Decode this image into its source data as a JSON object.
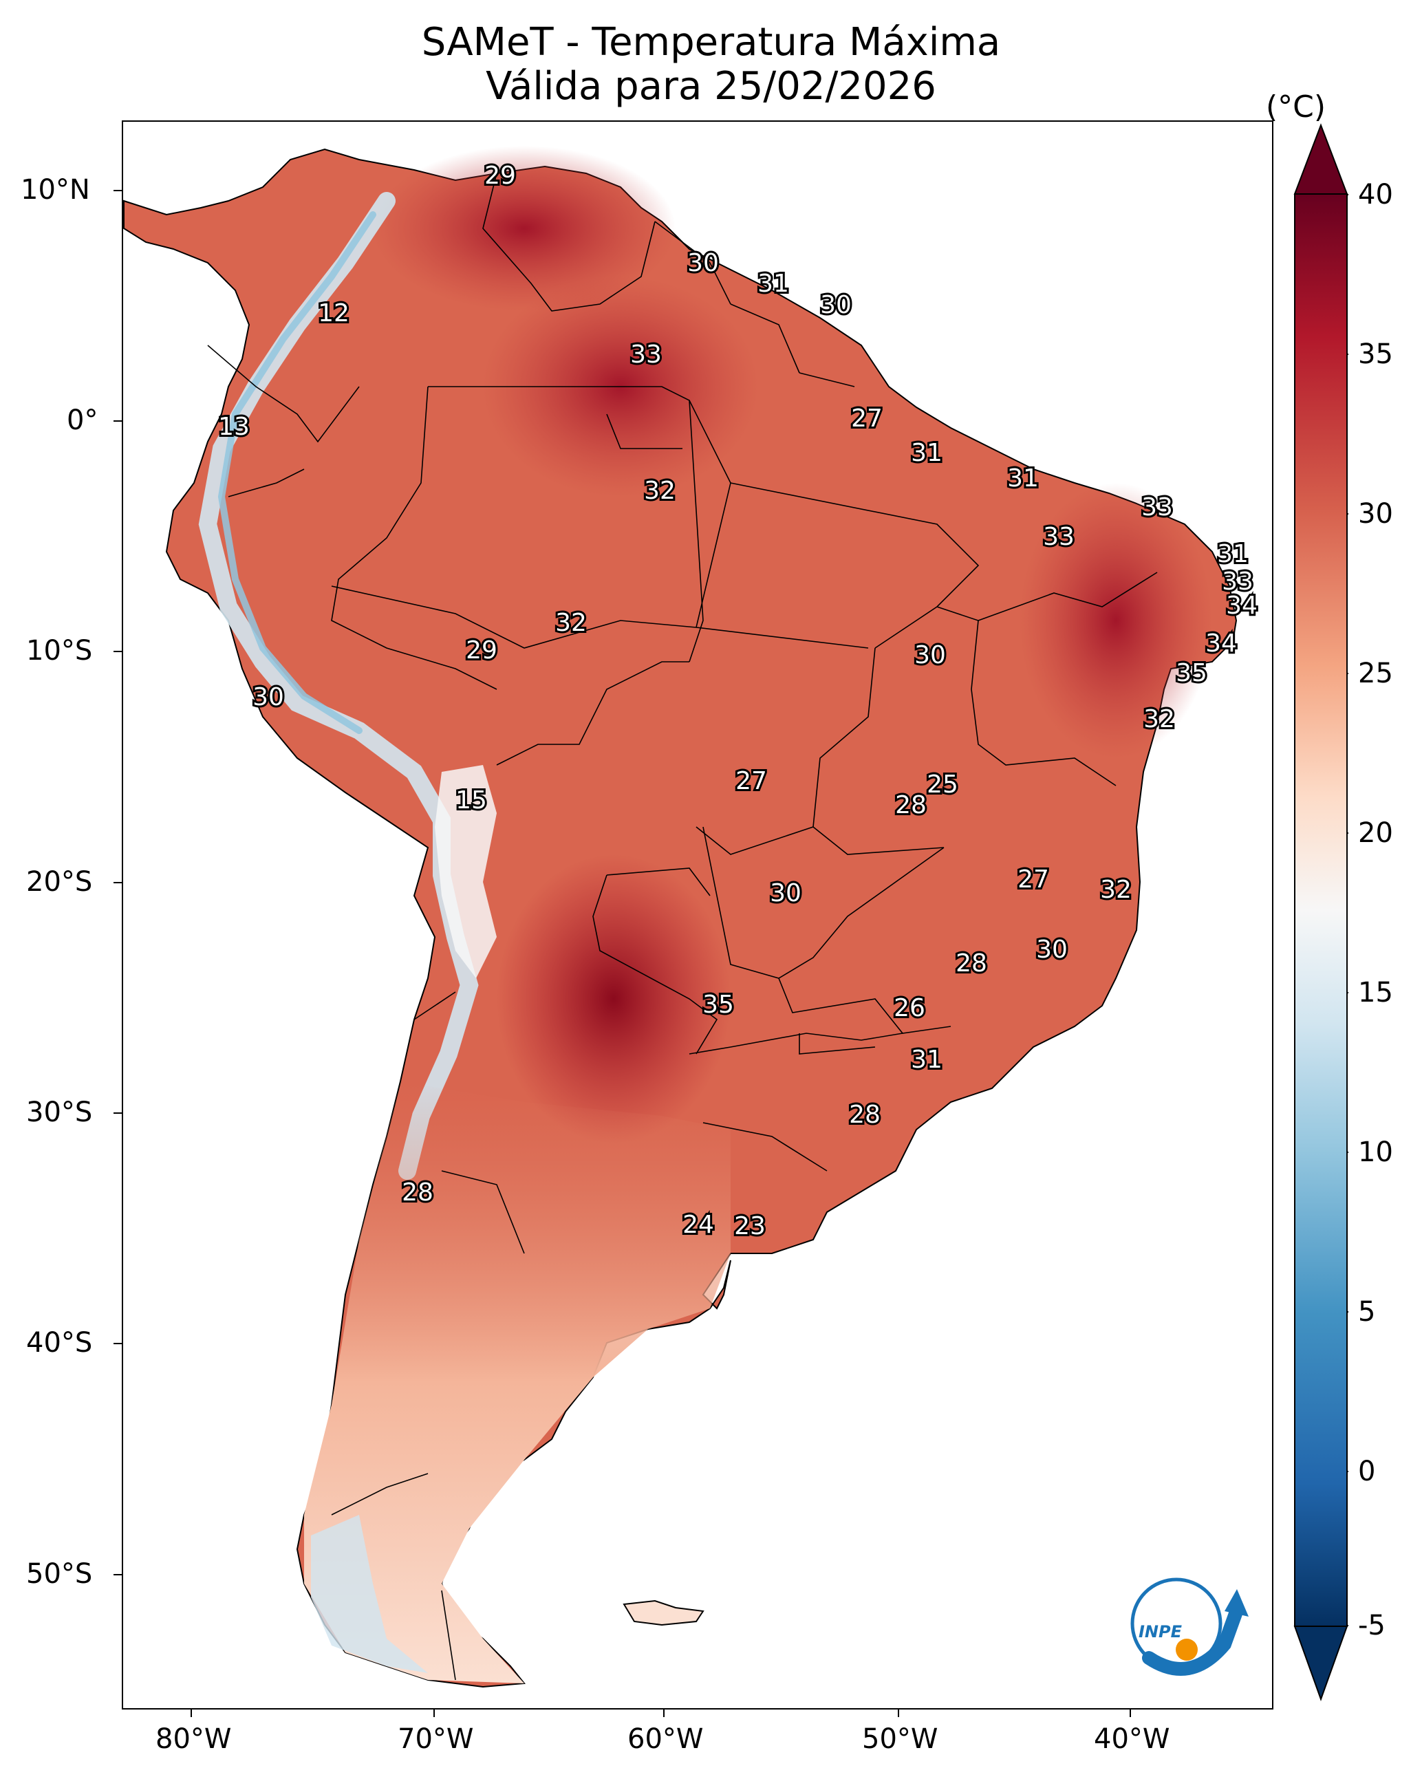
{
  "title": {
    "line1": "SAMeT - Temperatura Máxima",
    "line2": "Válida para 25/02/2026"
  },
  "axes": {
    "lon_ticks": [
      "80°W",
      "70°W",
      "60°W",
      "50°W",
      "40°W"
    ],
    "lat_ticks": [
      "10°N",
      "0°",
      "10°S",
      "20°S",
      "30°S",
      "40°S",
      "50°S"
    ]
  },
  "colorbar": {
    "unit": "(°C)",
    "ticks": [
      "40",
      "35",
      "30",
      "25",
      "20",
      "15",
      "10",
      "5",
      "0",
      "-5"
    ],
    "range": [
      -5,
      40
    ],
    "colors": [
      "#053061",
      "#2166ac",
      "#4393c3",
      "#92c5de",
      "#d1e5f0",
      "#f7f7f7",
      "#fddbc7",
      "#f4a582",
      "#d6604d",
      "#b2182b",
      "#67001f"
    ]
  },
  "map_labels": [
    {
      "value": "29"
    },
    {
      "value": "12"
    },
    {
      "value": "13"
    },
    {
      "value": "30"
    },
    {
      "value": "31"
    },
    {
      "value": "30"
    },
    {
      "value": "33"
    },
    {
      "value": "27"
    },
    {
      "value": "31"
    },
    {
      "value": "31"
    },
    {
      "value": "32"
    },
    {
      "value": "33"
    },
    {
      "value": "33"
    },
    {
      "value": "31"
    },
    {
      "value": "33"
    },
    {
      "value": "34"
    },
    {
      "value": "32"
    },
    {
      "value": "29"
    },
    {
      "value": "30"
    },
    {
      "value": "34"
    },
    {
      "value": "35"
    },
    {
      "value": "30"
    },
    {
      "value": "32"
    },
    {
      "value": "15"
    },
    {
      "value": "27"
    },
    {
      "value": "25"
    },
    {
      "value": "28"
    },
    {
      "value": "27"
    },
    {
      "value": "32"
    },
    {
      "value": "30"
    },
    {
      "value": "30"
    },
    {
      "value": "28"
    },
    {
      "value": "35"
    },
    {
      "value": "26"
    },
    {
      "value": "31"
    },
    {
      "value": "28"
    },
    {
      "value": "28"
    },
    {
      "value": "24"
    },
    {
      "value": "23"
    }
  ],
  "logo": {
    "text": "INPE"
  }
}
